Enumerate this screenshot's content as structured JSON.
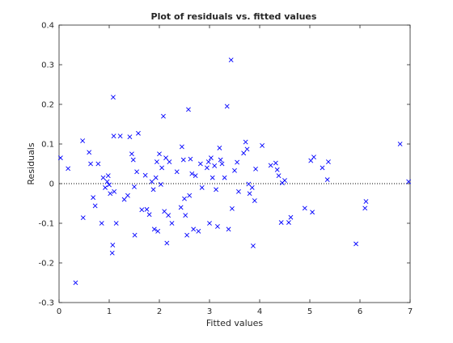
{
  "chart_data": {
    "type": "scatter",
    "title": "Plot of residuals vs. fitted values",
    "xlabel": "Fitted values",
    "ylabel": "Residuals",
    "xlim": [
      0,
      7
    ],
    "ylim": [
      -0.3,
      0.4
    ],
    "x_ticks": [
      "0",
      "1",
      "2",
      "3",
      "4",
      "5",
      "6",
      "7"
    ],
    "y_ticks": [
      "-0.3",
      "-0.2",
      "-0.1",
      "0",
      "0.1",
      "0.2",
      "0.3",
      "0.4"
    ],
    "grid": false,
    "reference_line": {
      "y": 0,
      "style": "dotted"
    },
    "marker": "x",
    "color": "#0000ff",
    "points": [
      [
        0.03,
        0.065
      ],
      [
        0.18,
        0.038
      ],
      [
        0.33,
        -0.25
      ],
      [
        0.47,
        0.108
      ],
      [
        0.48,
        -0.086
      ],
      [
        0.6,
        0.079
      ],
      [
        0.63,
        0.05
      ],
      [
        0.68,
        -0.035
      ],
      [
        0.72,
        -0.056
      ],
      [
        0.78,
        0.05
      ],
      [
        0.85,
        -0.1
      ],
      [
        0.88,
        0.015
      ],
      [
        0.92,
        -0.01
      ],
      [
        0.96,
        0.005
      ],
      [
        0.98,
        0.02
      ],
      [
        1.0,
        -0.003
      ],
      [
        1.02,
        -0.025
      ],
      [
        1.06,
        -0.175
      ],
      [
        1.07,
        -0.155
      ],
      [
        1.08,
        0.218
      ],
      [
        1.09,
        0.12
      ],
      [
        1.1,
        -0.02
      ],
      [
        1.14,
        -0.1
      ],
      [
        1.22,
        0.12
      ],
      [
        1.3,
        -0.04
      ],
      [
        1.37,
        -0.03
      ],
      [
        1.41,
        0.118
      ],
      [
        1.45,
        0.075
      ],
      [
        1.48,
        0.06
      ],
      [
        1.5,
        -0.008
      ],
      [
        1.51,
        -0.13
      ],
      [
        1.55,
        0.03
      ],
      [
        1.58,
        0.127
      ],
      [
        1.65,
        -0.066
      ],
      [
        1.72,
        0.021
      ],
      [
        1.75,
        -0.065
      ],
      [
        1.8,
        -0.078
      ],
      [
        1.85,
        0.005
      ],
      [
        1.88,
        -0.015
      ],
      [
        1.9,
        -0.115
      ],
      [
        1.93,
        0.015
      ],
      [
        1.95,
        0.055
      ],
      [
        1.97,
        -0.12
      ],
      [
        2.0,
        0.075
      ],
      [
        2.03,
        -0.002
      ],
      [
        2.05,
        0.04
      ],
      [
        2.08,
        0.17
      ],
      [
        2.1,
        -0.07
      ],
      [
        2.13,
        0.065
      ],
      [
        2.15,
        -0.15
      ],
      [
        2.18,
        -0.08
      ],
      [
        2.2,
        0.055
      ],
      [
        2.25,
        -0.1
      ],
      [
        2.35,
        0.03
      ],
      [
        2.43,
        -0.06
      ],
      [
        2.45,
        0.093
      ],
      [
        2.48,
        0.06
      ],
      [
        2.5,
        -0.038
      ],
      [
        2.52,
        -0.08
      ],
      [
        2.55,
        -0.13
      ],
      [
        2.58,
        0.187
      ],
      [
        2.6,
        -0.03
      ],
      [
        2.62,
        0.062
      ],
      [
        2.65,
        0.025
      ],
      [
        2.68,
        -0.115
      ],
      [
        2.72,
        0.02
      ],
      [
        2.78,
        -0.12
      ],
      [
        2.82,
        0.05
      ],
      [
        2.85,
        -0.01
      ],
      [
        2.95,
        0.04
      ],
      [
        2.98,
        0.055
      ],
      [
        3.0,
        -0.1
      ],
      [
        3.03,
        0.065
      ],
      [
        3.06,
        0.015
      ],
      [
        3.1,
        0.045
      ],
      [
        3.13,
        -0.015
      ],
      [
        3.16,
        -0.108
      ],
      [
        3.2,
        0.09
      ],
      [
        3.22,
        0.06
      ],
      [
        3.25,
        0.05
      ],
      [
        3.3,
        0.015
      ],
      [
        3.35,
        0.195
      ],
      [
        3.38,
        -0.115
      ],
      [
        3.43,
        0.312
      ],
      [
        3.45,
        -0.063
      ],
      [
        3.5,
        0.033
      ],
      [
        3.55,
        0.054
      ],
      [
        3.58,
        -0.02
      ],
      [
        3.68,
        0.077
      ],
      [
        3.72,
        0.105
      ],
      [
        3.75,
        0.087
      ],
      [
        3.78,
        -0.001
      ],
      [
        3.8,
        -0.025
      ],
      [
        3.85,
        -0.01
      ],
      [
        3.87,
        -0.157
      ],
      [
        3.9,
        -0.043
      ],
      [
        3.92,
        0.037
      ],
      [
        4.05,
        0.096
      ],
      [
        4.22,
        0.046
      ],
      [
        4.32,
        0.052
      ],
      [
        4.35,
        0.035
      ],
      [
        4.38,
        0.02
      ],
      [
        4.43,
        -0.098
      ],
      [
        4.45,
        0.002
      ],
      [
        4.5,
        0.008
      ],
      [
        4.58,
        -0.098
      ],
      [
        4.62,
        -0.085
      ],
      [
        4.9,
        -0.062
      ],
      [
        5.02,
        0.058
      ],
      [
        5.05,
        -0.072
      ],
      [
        5.08,
        0.067
      ],
      [
        5.25,
        0.04
      ],
      [
        5.35,
        0.01
      ],
      [
        5.37,
        0.055
      ],
      [
        5.92,
        -0.152
      ],
      [
        6.1,
        -0.062
      ],
      [
        6.12,
        -0.045
      ],
      [
        6.8,
        0.1
      ],
      [
        6.97,
        0.005
      ]
    ]
  }
}
